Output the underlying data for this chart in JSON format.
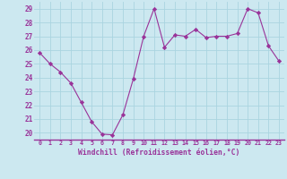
{
  "x": [
    0,
    1,
    2,
    3,
    4,
    5,
    6,
    7,
    8,
    9,
    10,
    11,
    12,
    13,
    14,
    15,
    16,
    17,
    18,
    19,
    20,
    21,
    22,
    23
  ],
  "y": [
    25.8,
    25.0,
    24.4,
    23.6,
    22.2,
    20.8,
    19.9,
    19.85,
    21.3,
    23.9,
    27.0,
    29.0,
    26.2,
    27.1,
    27.0,
    27.5,
    26.9,
    27.0,
    27.0,
    27.2,
    29.0,
    28.7,
    26.3,
    25.2
  ],
  "line_color": "#993399",
  "marker": "D",
  "marker_size": 2.2,
  "bg_color": "#cce8f0",
  "grid_color": "#aad4e0",
  "xlabel": "Windchill (Refroidissement éolien,°C)",
  "xlabel_color": "#993399",
  "tick_color": "#993399",
  "axis_color": "#993399",
  "ylim": [
    19.5,
    29.5
  ],
  "yticks": [
    20,
    21,
    22,
    23,
    24,
    25,
    26,
    27,
    28,
    29
  ],
  "xticks": [
    0,
    1,
    2,
    3,
    4,
    5,
    6,
    7,
    8,
    9,
    10,
    11,
    12,
    13,
    14,
    15,
    16,
    17,
    18,
    19,
    20,
    21,
    22,
    23
  ],
  "xtick_labels": [
    "0",
    "1",
    "2",
    "3",
    "4",
    "5",
    "6",
    "7",
    "8",
    "9",
    "10",
    "11",
    "12",
    "13",
    "14",
    "15",
    "16",
    "17",
    "18",
    "19",
    "20",
    "21",
    "22",
    "23"
  ]
}
